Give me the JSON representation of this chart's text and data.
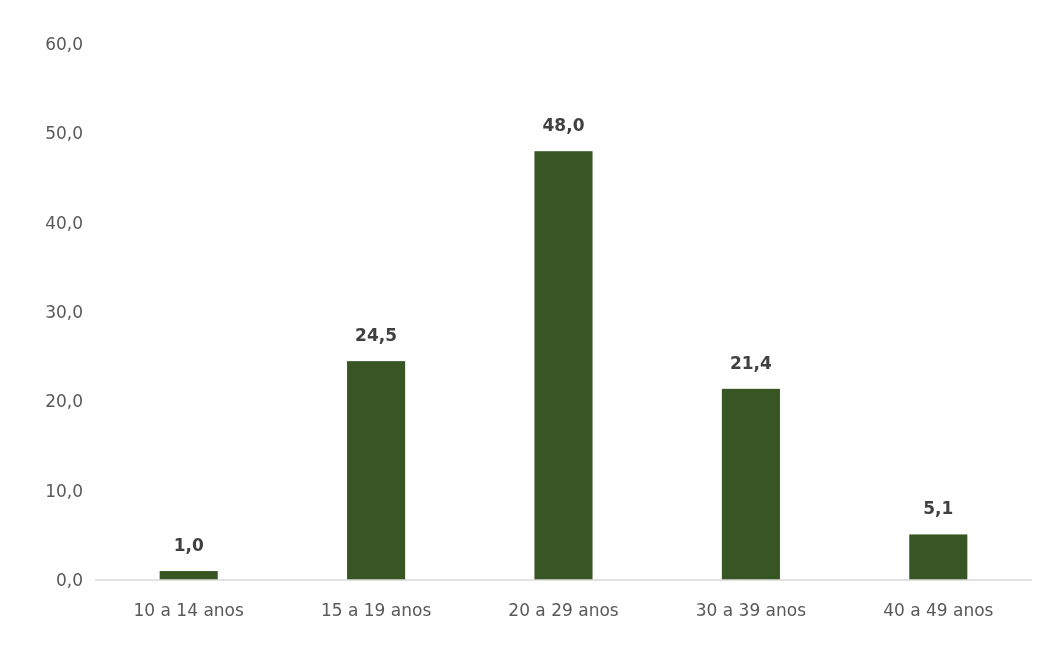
{
  "chart_data": {
    "type": "bar",
    "categories": [
      "10 a 14 anos",
      "15 a 19 anos",
      "20 a 29 anos",
      "30 a 39 anos",
      "40 a 49 anos"
    ],
    "values": [
      1.0,
      24.5,
      48.0,
      21.4,
      5.1
    ],
    "color": "#375623",
    "value_labels": [
      "1,0",
      "24,5",
      "48,0",
      "21,4",
      "5,1"
    ],
    "ylim": [
      0,
      60
    ],
    "yticks": [
      {
        "value": 0,
        "label": "0,0"
      },
      {
        "value": 10,
        "label": "10,0"
      },
      {
        "value": 20,
        "label": "20,0"
      },
      {
        "value": 30,
        "label": "30,0"
      },
      {
        "value": 40,
        "label": "40,0"
      },
      {
        "value": 50,
        "label": "50,0"
      },
      {
        "value": 60,
        "label": "60,0"
      }
    ],
    "grid": false
  }
}
